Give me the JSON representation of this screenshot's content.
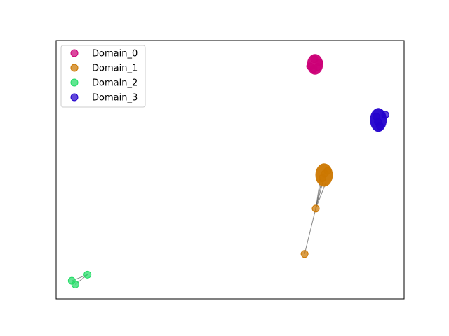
{
  "chart_data": {
    "type": "scatter",
    "title": "",
    "xlabel": "",
    "ylabel": "",
    "axes_visible_ticks": false,
    "grid": false,
    "legend_position": "top-left",
    "xlim": [
      0,
      100
    ],
    "ylim": [
      0,
      100
    ],
    "series": [
      {
        "name": "Domain_0",
        "color": "#cc0077",
        "cluster": {
          "cx": 74.4,
          "cy": 90.8,
          "rx": 2.3,
          "ry": 4.0
        },
        "points": [
          [
            73.0,
            90.0
          ],
          [
            75.6,
            91.5
          ],
          [
            74.2,
            92.8
          ],
          [
            74.0,
            89.0
          ],
          [
            75.2,
            89.8
          ]
        ]
      },
      {
        "name": "Domain_1",
        "color": "#cc7700",
        "cluster": {
          "cx": 77.0,
          "cy": 48.0,
          "rx": 2.5,
          "ry": 4.5
        },
        "points": [
          [
            74.6,
            35.0
          ],
          [
            71.4,
            17.4
          ],
          [
            77.2,
            48.5
          ],
          [
            76.5,
            46.8
          ],
          [
            78.0,
            49.6
          ]
        ]
      },
      {
        "name": "Domain_2",
        "color": "#22dd66",
        "cluster": null,
        "points": [
          [
            9.0,
            9.4
          ],
          [
            4.5,
            7.0
          ],
          [
            5.5,
            5.6
          ]
        ]
      },
      {
        "name": "Domain_3",
        "color": "#2200cc",
        "cluster": {
          "cx": 92.6,
          "cy": 69.3,
          "rx": 2.4,
          "ry": 4.6
        },
        "points": [
          [
            94.6,
            71.3
          ],
          [
            92.5,
            68.5
          ],
          [
            92.0,
            70.6
          ],
          [
            93.0,
            67.0
          ]
        ]
      }
    ],
    "links": [
      {
        "from": [
          74.6,
          35.0
        ],
        "to": [
          71.4,
          17.4
        ]
      },
      {
        "from": [
          74.6,
          35.0
        ],
        "to": [
          76.2,
          45.2
        ]
      },
      {
        "from": [
          74.6,
          35.0
        ],
        "to": [
          76.8,
          46.0
        ]
      },
      {
        "from": [
          74.6,
          35.0
        ],
        "to": [
          77.5,
          45.0
        ]
      },
      {
        "from": [
          74.6,
          35.0
        ],
        "to": [
          76.0,
          47.0
        ]
      },
      {
        "from": [
          9.0,
          9.4
        ],
        "to": [
          4.5,
          7.0
        ]
      },
      {
        "from": [
          9.0,
          9.4
        ],
        "to": [
          5.5,
          5.6
        ]
      }
    ]
  }
}
